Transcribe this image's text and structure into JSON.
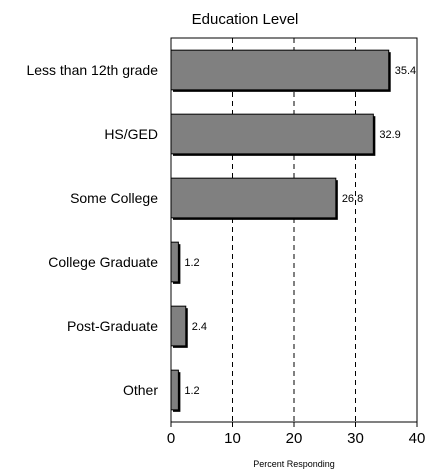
{
  "chart_data": {
    "type": "bar",
    "orientation": "horizontal",
    "title": "Education Level",
    "xlabel": "Percent Responding",
    "ylabel": "",
    "categories": [
      "Less than 12th grade",
      "HS/GED",
      "Some College",
      "College Graduate",
      "Post-Graduate",
      "Other"
    ],
    "values": [
      35.4,
      32.9,
      26.8,
      1.2,
      2.4,
      1.2
    ],
    "value_labels": [
      "35.4",
      "32.9",
      "26.8",
      "1.2",
      "2.4",
      "1.2"
    ],
    "xlim": [
      0,
      40
    ],
    "xticks": [
      0,
      10,
      20,
      30,
      40
    ],
    "grid": "vertical dashed",
    "legend": "none",
    "colors": {
      "bar_fill": "#808080",
      "bar_edge": "#000000",
      "grid": "#000000"
    }
  }
}
